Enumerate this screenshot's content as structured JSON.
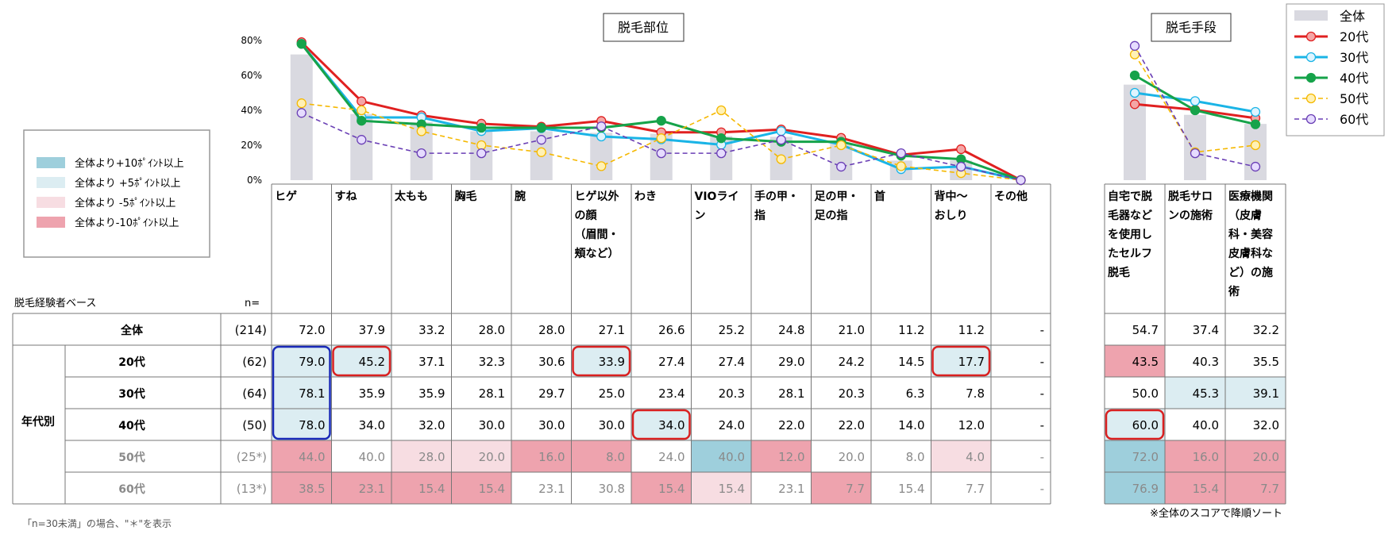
{
  "charts": {
    "left_title": "脱毛部位",
    "right_title": "脱毛手段",
    "y_ticks": [
      "80%",
      "60%",
      "40%",
      "20%",
      "0%"
    ]
  },
  "color_legend": [
    {
      "label": "全体より+10ﾎﾟｲﾝﾄ以上",
      "color": "#9ecfdc"
    },
    {
      "label": "全体より +5ﾎﾟｲﾝﾄ以上",
      "color": "#dcedf2"
    },
    {
      "label": "全体より -5ﾎﾟｲﾝﾄ以上",
      "color": "#f7dde2"
    },
    {
      "label": "全体より-10ﾎﾟｲﾝﾄ以上",
      "color": "#eea3ae"
    }
  ],
  "table": {
    "base_label": "脱毛経験者ベース",
    "n_label": "n=",
    "group_label": "年代別",
    "left_headers": [
      [
        "ヒゲ"
      ],
      [
        "すね"
      ],
      [
        "太もも"
      ],
      [
        "胸毛"
      ],
      [
        "腕"
      ],
      [
        "ヒゲ以外",
        "の顔",
        "（眉間・",
        "頬など）"
      ],
      [
        "わき"
      ],
      [
        "VIOライ",
        "ン"
      ],
      [
        "手の甲・",
        "指"
      ],
      [
        "足の甲・",
        "足の指"
      ],
      [
        "首"
      ],
      [
        "背中～",
        "おしり"
      ],
      [
        "その他"
      ]
    ],
    "right_headers": [
      [
        "自宅で脱",
        "毛器など",
        "を使用し",
        "たセルフ",
        "脱毛"
      ],
      [
        "脱毛サロ",
        "ンの施術"
      ],
      [
        "医療機関",
        "（皮膚",
        "科・美容",
        "皮膚科な",
        "ど）の施",
        "術"
      ]
    ],
    "rows": [
      {
        "label": "全体",
        "n": "(214)",
        "left": [
          "72.0",
          "37.9",
          "33.2",
          "28.0",
          "28.0",
          "27.1",
          "26.6",
          "25.2",
          "24.8",
          "21.0",
          "11.2",
          "11.2",
          "-"
        ],
        "right": [
          "54.7",
          "37.4",
          "32.2"
        ]
      },
      {
        "label": "20代",
        "n": "(62)",
        "left": [
          "79.0",
          "45.2",
          "37.1",
          "32.3",
          "30.6",
          "33.9",
          "27.4",
          "27.4",
          "29.0",
          "24.2",
          "14.5",
          "17.7",
          "-"
        ],
        "right": [
          "43.5",
          "40.3",
          "35.5"
        ]
      },
      {
        "label": "30代",
        "n": "(64)",
        "left": [
          "78.1",
          "35.9",
          "35.9",
          "28.1",
          "29.7",
          "25.0",
          "23.4",
          "20.3",
          "28.1",
          "20.3",
          "6.3",
          "7.8",
          "-"
        ],
        "right": [
          "50.0",
          "45.3",
          "39.1"
        ]
      },
      {
        "label": "40代",
        "n": "(50)",
        "left": [
          "78.0",
          "34.0",
          "32.0",
          "30.0",
          "30.0",
          "30.0",
          "34.0",
          "24.0",
          "22.0",
          "22.0",
          "14.0",
          "12.0",
          "-"
        ],
        "right": [
          "60.0",
          "40.0",
          "32.0"
        ]
      },
      {
        "label": "50代",
        "n": "(25*)",
        "left": [
          "44.0",
          "40.0",
          "28.0",
          "20.0",
          "16.0",
          "8.0",
          "24.0",
          "40.0",
          "12.0",
          "20.0",
          "8.0",
          "4.0",
          "-"
        ],
        "right": [
          "72.0",
          "16.0",
          "20.0"
        ]
      },
      {
        "label": "60代",
        "n": "(13*)",
        "left": [
          "38.5",
          "23.1",
          "15.4",
          "15.4",
          "23.1",
          "30.8",
          "15.4",
          "15.4",
          "23.1",
          "7.7",
          "15.4",
          "7.7",
          "-"
        ],
        "right": [
          "76.9",
          "15.4",
          "7.7"
        ]
      }
    ],
    "footnote_left": "「n=30未満」の場合、\"＊\"を表示",
    "footnote_right": "※全体のスコアで降順ソート"
  },
  "chart_data": [
    {
      "type": "line",
      "title": "脱毛部位",
      "categories": [
        "ヒゲ",
        "すね",
        "太もも",
        "胸毛",
        "腕",
        "ヒゲ以外の顔（眉間・頬など）",
        "わき",
        "VIOライン",
        "手の甲・指",
        "足の甲・足の指",
        "首",
        "背中～おしり",
        "その他"
      ],
      "ylim": [
        0,
        80
      ],
      "bars": {
        "name": "全体",
        "values": [
          72.0,
          37.9,
          33.2,
          28.0,
          28.0,
          27.1,
          26.6,
          25.2,
          24.8,
          21.0,
          11.2,
          11.2,
          0
        ],
        "color": "#d9d9e0"
      },
      "series": [
        {
          "name": "20代",
          "values": [
            79.0,
            45.2,
            37.1,
            32.3,
            30.6,
            33.9,
            27.4,
            27.4,
            29.0,
            24.2,
            14.5,
            17.7,
            0
          ],
          "color": "#e02020",
          "dash": false
        },
        {
          "name": "30代",
          "values": [
            78.1,
            35.9,
            35.9,
            28.1,
            29.7,
            25.0,
            23.4,
            20.3,
            28.1,
            20.3,
            6.3,
            7.8,
            0
          ],
          "color": "#1ab4e6",
          "dash": false
        },
        {
          "name": "40代",
          "values": [
            78.0,
            34.0,
            32.0,
            30.0,
            30.0,
            30.0,
            34.0,
            24.0,
            22.0,
            22.0,
            14.0,
            12.0,
            0
          ],
          "color": "#16a34a",
          "dash": false
        },
        {
          "name": "50代",
          "values": [
            44.0,
            40.0,
            28.0,
            20.0,
            16.0,
            8.0,
            24.0,
            40.0,
            12.0,
            20.0,
            8.0,
            4.0,
            0
          ],
          "color": "#f5b800",
          "dash": true
        },
        {
          "name": "60代",
          "values": [
            38.5,
            23.1,
            15.4,
            15.4,
            23.1,
            30.8,
            15.4,
            15.4,
            23.1,
            7.7,
            15.4,
            7.7,
            0
          ],
          "color": "#6a3fb5",
          "dash": true
        }
      ]
    },
    {
      "type": "line",
      "title": "脱毛手段",
      "categories": [
        "自宅で脱毛器などを使用したセルフ脱毛",
        "脱毛サロンの施術",
        "医療機関（皮膚科・美容皮膚科など）の施術"
      ],
      "ylim": [
        0,
        80
      ],
      "bars": {
        "name": "全体",
        "values": [
          54.7,
          37.4,
          32.2
        ],
        "color": "#d9d9e0"
      },
      "series": [
        {
          "name": "20代",
          "values": [
            43.5,
            40.3,
            35.5
          ],
          "color": "#e02020",
          "dash": false
        },
        {
          "name": "30代",
          "values": [
            50.0,
            45.3,
            39.1
          ],
          "color": "#1ab4e6",
          "dash": false
        },
        {
          "name": "40代",
          "values": [
            60.0,
            40.0,
            32.0
          ],
          "color": "#16a34a",
          "dash": false
        },
        {
          "name": "50代",
          "values": [
            72.0,
            16.0,
            20.0
          ],
          "color": "#f5b800",
          "dash": true
        },
        {
          "name": "60代",
          "values": [
            76.9,
            15.4,
            7.7
          ],
          "color": "#6a3fb5",
          "dash": true
        }
      ]
    }
  ],
  "cell_shading": {
    "left": [
      [
        "",
        "",
        "",
        "",
        "",
        "",
        "",
        "",
        "",
        "",
        "",
        "",
        ""
      ],
      [
        "pale",
        "pale",
        "",
        "",
        "",
        "pale",
        "",
        "",
        "",
        "",
        "",
        "pale",
        ""
      ],
      [
        "pale",
        "",
        "",
        "",
        "",
        "",
        "",
        "",
        "",
        "",
        "",
        "",
        ""
      ],
      [
        "pale",
        "",
        "",
        "",
        "",
        "",
        "pale",
        "",
        "",
        "",
        "",
        "",
        ""
      ],
      [
        "red",
        "",
        "pink",
        "pink",
        "red",
        "red",
        "",
        "blue",
        "red",
        "",
        "",
        "pink",
        ""
      ],
      [
        "red",
        "red",
        "red",
        "red",
        "",
        "",
        "red",
        "pink",
        "",
        "red",
        "",
        "",
        ""
      ]
    ],
    "right": [
      [
        "",
        "",
        ""
      ],
      [
        "red",
        "",
        ""
      ],
      [
        "",
        "pale",
        "pale"
      ],
      [
        "pale",
        "",
        ""
      ],
      [
        "blue",
        "red",
        "red"
      ],
      [
        "blue",
        "red",
        "red"
      ]
    ]
  },
  "highlights": [
    {
      "row": 1,
      "col": 1,
      "table": "left",
      "color": "#d92020"
    },
    {
      "row": 1,
      "col": 5,
      "table": "left",
      "color": "#d92020"
    },
    {
      "row": 1,
      "col": 11,
      "table": "left",
      "color": "#d92020"
    },
    {
      "row": 3,
      "col": 6,
      "table": "left",
      "color": "#d92020"
    },
    {
      "row": 3,
      "col": 0,
      "table": "right",
      "color": "#d92020"
    },
    {
      "rows": [
        1,
        3
      ],
      "col": 0,
      "table": "left",
      "color": "#1a2ab8"
    }
  ],
  "shade_colors": {
    "pale": "#dcedf2",
    "blue": "#9ecfdc",
    "pink": "#f7dde2",
    "red": "#eea3ae"
  }
}
